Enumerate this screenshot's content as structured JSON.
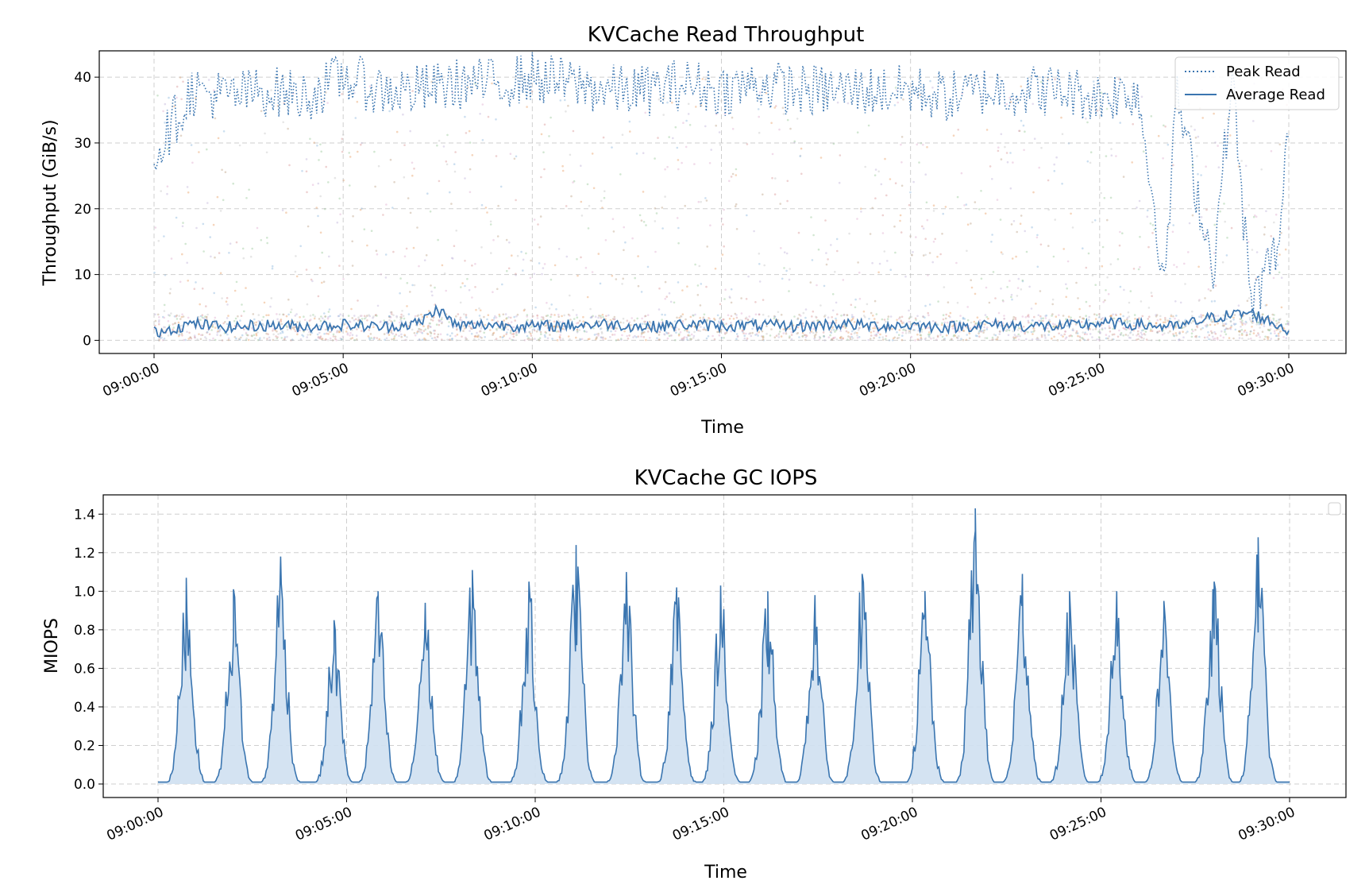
{
  "chart_data": [
    {
      "type": "line",
      "title": "KVCache Read Throughput",
      "xlabel": "Time",
      "ylabel": "Throughput (GiB/s)",
      "xlim": [
        "09:00:00",
        "09:30:00"
      ],
      "ylim": [
        -2,
        44
      ],
      "x_ticks": [
        "09:00:00",
        "09:05:00",
        "09:10:00",
        "09:15:00",
        "09:20:00",
        "09:25:00",
        "09:30:00"
      ],
      "y_ticks": [
        0,
        10,
        20,
        30,
        40
      ],
      "grid": true,
      "legend": "top-right",
      "background_scatter": "faint multicolored per-request read throughput points between 0 and 40 GiB/s, densest below 5 GiB/s",
      "series": [
        {
          "name": "Peak Read",
          "style": "dotted",
          "color": "#3a75b0",
          "x": [
            "09:00:00",
            "09:01:00",
            "09:02:00",
            "09:03:00",
            "09:04:00",
            "09:05:00",
            "09:06:00",
            "09:07:00",
            "09:08:00",
            "09:09:00",
            "09:10:00",
            "09:11:00",
            "09:12:00",
            "09:13:00",
            "09:14:00",
            "09:15:00",
            "09:16:00",
            "09:17:00",
            "09:18:00",
            "09:19:00",
            "09:20:00",
            "09:21:00",
            "09:22:00",
            "09:23:00",
            "09:24:00",
            "09:25:00",
            "09:26:00",
            "09:26:45",
            "09:27:00",
            "09:28:00",
            "09:28:30",
            "09:29:00",
            "09:29:45",
            "09:30:00"
          ],
          "values": [
            28,
            38,
            37,
            38,
            37,
            40,
            38,
            38,
            39,
            39,
            40,
            39,
            38,
            38,
            39,
            38,
            39,
            38,
            38,
            38,
            38,
            37,
            38,
            38,
            38,
            37,
            38,
            8,
            38,
            11,
            40,
            5,
            15,
            33
          ]
        },
        {
          "name": "Average Read",
          "style": "solid",
          "color": "#3a75b0",
          "x": [
            "09:00:00",
            "09:01:00",
            "09:02:00",
            "09:03:00",
            "09:04:00",
            "09:05:00",
            "09:06:00",
            "09:07:00",
            "09:07:30",
            "09:08:00",
            "09:09:00",
            "09:10:00",
            "09:11:00",
            "09:12:00",
            "09:13:00",
            "09:14:00",
            "09:15:00",
            "09:16:00",
            "09:17:00",
            "09:18:00",
            "09:19:00",
            "09:20:00",
            "09:21:00",
            "09:22:00",
            "09:23:00",
            "09:24:00",
            "09:25:00",
            "09:26:00",
            "09:27:00",
            "09:28:00",
            "09:29:00",
            "09:30:00"
          ],
          "values": [
            1.2,
            2.5,
            2.0,
            2.3,
            2.1,
            2.4,
            2.0,
            2.6,
            4.8,
            2.2,
            2.4,
            2.1,
            2.3,
            2.5,
            2.0,
            2.4,
            2.2,
            2.3,
            2.1,
            2.5,
            2.2,
            2.3,
            2.0,
            2.4,
            2.2,
            2.1,
            2.6,
            2.4,
            2.0,
            3.5,
            4.2,
            1.5
          ]
        }
      ]
    },
    {
      "type": "area",
      "title": "KVCache GC IOPS",
      "xlabel": "Time",
      "ylabel": "MIOPS",
      "xlim": [
        "09:00:00",
        "09:30:00"
      ],
      "ylim": [
        -0.07,
        1.5
      ],
      "x_ticks": [
        "09:00:00",
        "09:05:00",
        "09:10:00",
        "09:15:00",
        "09:20:00",
        "09:25:00",
        "09:30:00"
      ],
      "y_ticks": [
        0.0,
        0.2,
        0.4,
        0.6,
        0.8,
        1.0,
        1.2,
        1.4
      ],
      "grid": true,
      "legend": "top-right (empty)",
      "color": "#3a75b0",
      "fill_color": "#cfe0f1",
      "baseline": 0.01,
      "peaks": [
        {
          "time": "09:00:45",
          "value": 1.07
        },
        {
          "time": "09:02:00",
          "value": 1.01
        },
        {
          "time": "09:03:15",
          "value": 1.18
        },
        {
          "time": "09:04:40",
          "value": 0.85
        },
        {
          "time": "09:05:50",
          "value": 1.0
        },
        {
          "time": "09:07:05",
          "value": 0.94
        },
        {
          "time": "09:08:20",
          "value": 1.11
        },
        {
          "time": "09:09:50",
          "value": 1.05
        },
        {
          "time": "09:11:05",
          "value": 1.24
        },
        {
          "time": "09:12:25",
          "value": 1.1
        },
        {
          "time": "09:13:45",
          "value": 1.02
        },
        {
          "time": "09:14:55",
          "value": 1.03
        },
        {
          "time": "09:16:10",
          "value": 1.0
        },
        {
          "time": "09:17:25",
          "value": 0.98
        },
        {
          "time": "09:18:40",
          "value": 1.09
        },
        {
          "time": "09:20:20",
          "value": 1.0
        },
        {
          "time": "09:21:40",
          "value": 1.43
        },
        {
          "time": "09:22:55",
          "value": 1.09
        },
        {
          "time": "09:24:10",
          "value": 1.0
        },
        {
          "time": "09:25:25",
          "value": 1.0
        },
        {
          "time": "09:26:40",
          "value": 0.95
        },
        {
          "time": "09:28:00",
          "value": 1.05
        },
        {
          "time": "09:29:10",
          "value": 1.28
        }
      ]
    }
  ]
}
